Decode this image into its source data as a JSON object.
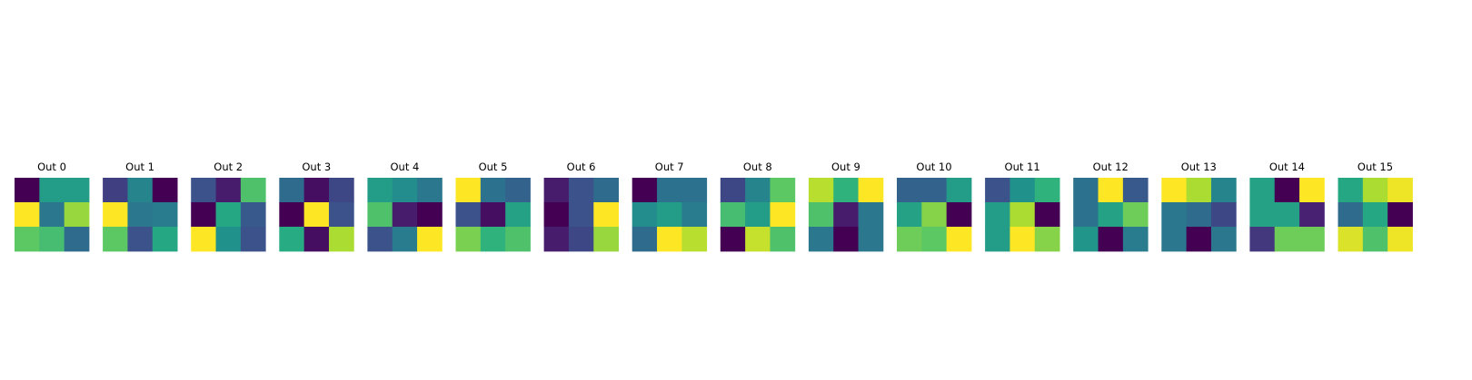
{
  "chart_data": {
    "type": "heatmap",
    "colormap": "viridis",
    "axes_visible": false,
    "grid": false,
    "value_range": [
      0,
      1
    ],
    "panels": [
      {
        "title": "Out 0",
        "values": [
          [
            0.0,
            0.55,
            0.55
          ],
          [
            1.0,
            0.4,
            0.85
          ],
          [
            0.75,
            0.7,
            0.35
          ]
        ]
      },
      {
        "title": "Out 1",
        "values": [
          [
            0.2,
            0.45,
            0.0
          ],
          [
            1.0,
            0.4,
            0.42
          ],
          [
            0.75,
            0.25,
            0.6
          ]
        ]
      },
      {
        "title": "Out 2",
        "values": [
          [
            0.25,
            0.1,
            0.72
          ],
          [
            0.0,
            0.6,
            0.28
          ],
          [
            1.0,
            0.5,
            0.25
          ]
        ]
      },
      {
        "title": "Out 3",
        "values": [
          [
            0.35,
            0.05,
            0.22
          ],
          [
            0.0,
            1.0,
            0.25
          ],
          [
            0.62,
            0.05,
            0.88
          ]
        ]
      },
      {
        "title": "Out 4",
        "values": [
          [
            0.55,
            0.48,
            0.4
          ],
          [
            0.72,
            0.1,
            0.0
          ],
          [
            0.25,
            0.42,
            1.0
          ]
        ]
      },
      {
        "title": "Out 5",
        "values": [
          [
            1.0,
            0.38,
            0.32
          ],
          [
            0.25,
            0.05,
            0.58
          ],
          [
            0.8,
            0.65,
            0.72
          ]
        ]
      },
      {
        "title": "Out 6",
        "values": [
          [
            0.1,
            0.25,
            0.35
          ],
          [
            0.0,
            0.25,
            1.0
          ],
          [
            0.1,
            0.22,
            0.85
          ]
        ]
      },
      {
        "title": "Out 7",
        "values": [
          [
            0.0,
            0.38,
            0.38
          ],
          [
            0.48,
            0.55,
            0.42
          ],
          [
            0.35,
            1.0,
            0.9
          ]
        ]
      },
      {
        "title": "Out 8",
        "values": [
          [
            0.22,
            0.45,
            0.75
          ],
          [
            0.7,
            0.55,
            1.0
          ],
          [
            0.0,
            0.92,
            0.72
          ]
        ]
      },
      {
        "title": "Out 9",
        "values": [
          [
            0.9,
            0.65,
            1.0
          ],
          [
            0.72,
            0.1,
            0.4
          ],
          [
            0.4,
            0.0,
            0.4
          ]
        ]
      },
      {
        "title": "Out 10",
        "values": [
          [
            0.32,
            0.32,
            0.55
          ],
          [
            0.58,
            0.82,
            0.0
          ],
          [
            0.78,
            0.75,
            1.0
          ]
        ]
      },
      {
        "title": "Out 11",
        "values": [
          [
            0.25,
            0.5,
            0.65
          ],
          [
            0.55,
            0.88,
            0.0
          ],
          [
            0.55,
            1.0,
            0.82
          ]
        ]
      },
      {
        "title": "Out 12",
        "values": [
          [
            0.38,
            1.0,
            0.28
          ],
          [
            0.38,
            0.58,
            0.78
          ],
          [
            0.52,
            0.0,
            0.42
          ]
        ]
      },
      {
        "title": "Out 13",
        "values": [
          [
            1.0,
            0.88,
            0.45
          ],
          [
            0.4,
            0.35,
            0.22
          ],
          [
            0.4,
            0.0,
            0.4
          ]
        ]
      },
      {
        "title": "Out 14",
        "values": [
          [
            0.58,
            0.0,
            1.0
          ],
          [
            0.58,
            0.58,
            0.12
          ],
          [
            0.18,
            0.78,
            0.78
          ]
        ]
      },
      {
        "title": "Out 15",
        "values": [
          [
            0.6,
            0.88,
            0.98
          ],
          [
            0.35,
            0.6,
            0.0
          ],
          [
            0.95,
            0.72,
            0.98
          ]
        ]
      }
    ]
  }
}
